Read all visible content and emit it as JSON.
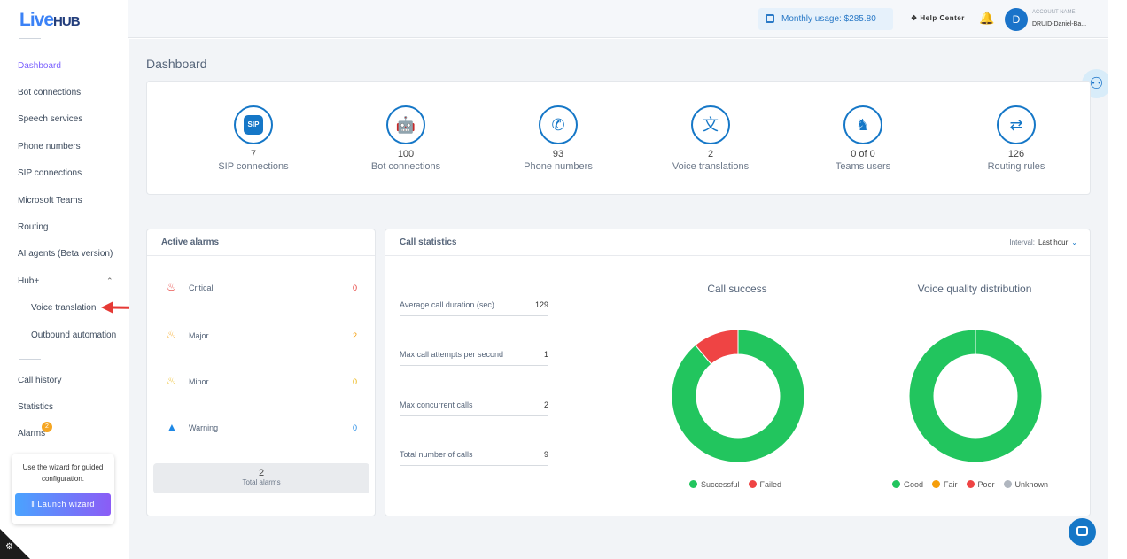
{
  "app": {
    "logo_main": "Live",
    "logo_hub": "HUB"
  },
  "sidebar": {
    "items": [
      {
        "label": "Dashboard",
        "name": "sidebar-item-dashboard",
        "active": true
      },
      {
        "label": "Bot connections",
        "name": "sidebar-item-bot-connections"
      },
      {
        "label": "Speech services",
        "name": "sidebar-item-speech-services"
      },
      {
        "label": "Phone numbers",
        "name": "sidebar-item-phone-numbers"
      },
      {
        "label": "SIP connections",
        "name": "sidebar-item-sip-connections"
      },
      {
        "label": "Microsoft Teams",
        "name": "sidebar-item-microsoft-teams"
      },
      {
        "label": "Routing",
        "name": "sidebar-item-routing"
      },
      {
        "label": "AI agents (Beta version)",
        "name": "sidebar-item-ai-agents"
      },
      {
        "label": "Hub+",
        "name": "sidebar-item-hub-plus"
      },
      {
        "label": "Voice translation",
        "name": "sidebar-item-voice-translation",
        "sub": true
      },
      {
        "label": "Outbound automation",
        "name": "sidebar-item-outbound-automation",
        "sub": true
      },
      {
        "label": "Call history",
        "name": "sidebar-item-call-history"
      },
      {
        "label": "Statistics",
        "name": "sidebar-item-statistics"
      },
      {
        "label": "Alarms",
        "name": "sidebar-item-alarms"
      }
    ],
    "alarms_badge": "2",
    "wizard_text": "Use the wizard for guided configuration.",
    "wizard_button": "Launch wizard"
  },
  "topbar": {
    "usage_label": "Monthly usage:",
    "usage_value": "$285.80",
    "help": "Help Center",
    "avatar_letter": "D",
    "account_label": "ACCOUNT NAME:",
    "account_name": "DRUID-Daniel-Ba..."
  },
  "page": {
    "title": "Dashboard"
  },
  "summary": [
    {
      "value": "7",
      "label": "SIP connections",
      "icon": "sip-icon"
    },
    {
      "value": "100",
      "label": "Bot connections",
      "icon": "robot-icon"
    },
    {
      "value": "93",
      "label": "Phone numbers",
      "icon": "phone-icon"
    },
    {
      "value": "2",
      "label": "Voice translations",
      "icon": "translate-icon"
    },
    {
      "value": "0 of 0",
      "label": "Teams users",
      "icon": "teams-icon"
    },
    {
      "value": "126",
      "label": "Routing rules",
      "icon": "routing-icon"
    }
  ],
  "alarms": {
    "title": "Active alarms",
    "rows": [
      {
        "label": "Critical",
        "value": "0",
        "color": "#e53935"
      },
      {
        "label": "Major",
        "value": "2",
        "color": "#f59e0b"
      },
      {
        "label": "Minor",
        "value": "0",
        "color": "#eab308"
      },
      {
        "label": "Warning",
        "value": "0",
        "color": "#1e88e5"
      }
    ],
    "total_value": "2",
    "total_label": "Total alarms"
  },
  "calls": {
    "title": "Call statistics",
    "interval_label": "Interval:",
    "interval_value": "Last hour",
    "stats": [
      {
        "label": "Average call duration (sec)",
        "value": "129"
      },
      {
        "label": "Max call attempts per second",
        "value": "1"
      },
      {
        "label": "Max concurrent calls",
        "value": "2"
      },
      {
        "label": "Total number of calls",
        "value": "9"
      }
    ],
    "success_title": "Call success",
    "quality_title": "Voice quality distribution",
    "success_legend": [
      {
        "label": "Successful",
        "color": "#22c55e"
      },
      {
        "label": "Failed",
        "color": "#ef4444"
      }
    ],
    "quality_legend": [
      {
        "label": "Good",
        "color": "#22c55e"
      },
      {
        "label": "Fair",
        "color": "#f59e0b"
      },
      {
        "label": "Poor",
        "color": "#ef4444"
      },
      {
        "label": "Unknown",
        "color": "#b0b6bf"
      }
    ]
  },
  "chart_data": [
    {
      "type": "pie",
      "title": "Call success",
      "categories": [
        "Successful",
        "Failed"
      ],
      "values": [
        8,
        1
      ]
    },
    {
      "type": "pie",
      "title": "Voice quality distribution",
      "categories": [
        "Good",
        "Fair",
        "Poor",
        "Unknown"
      ],
      "values": [
        100,
        0,
        0,
        0
      ]
    }
  ]
}
